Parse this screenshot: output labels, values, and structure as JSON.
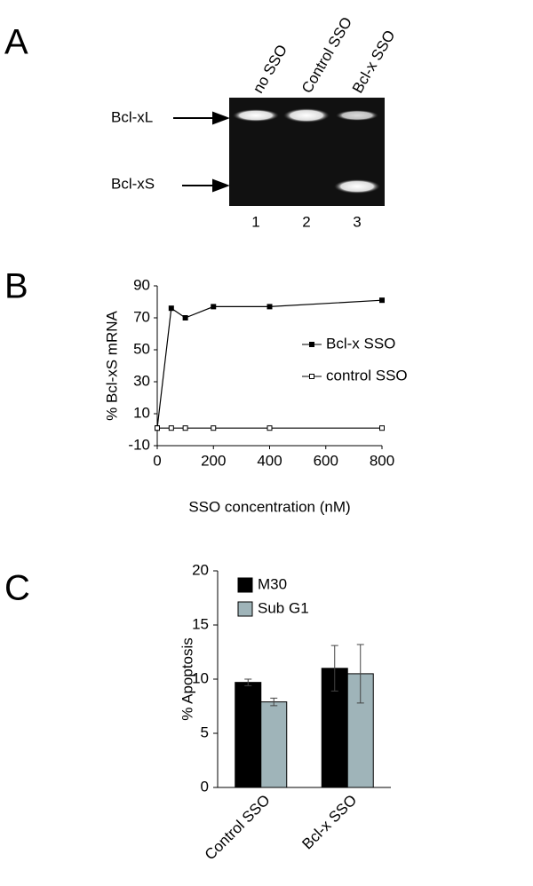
{
  "gel": {
    "panel_label": "A",
    "lanes": [
      "no SSO",
      "Control SSO",
      "Bcl-x SSO"
    ],
    "lane_numbers": [
      "1",
      "2",
      "3"
    ],
    "bands": [
      "Bcl-xL",
      "Bcl-xS"
    ]
  },
  "chart_data": [
    {
      "type": "line",
      "panel_label": "B",
      "xlabel": "SSO concentration (nM)",
      "ylabel": "% Bcl-xS mRNA",
      "xlim": [
        0,
        800
      ],
      "xticks": [
        0,
        200,
        400,
        600,
        800
      ],
      "ylim": [
        -10,
        90
      ],
      "yticks": [
        -10,
        10,
        30,
        50,
        70,
        90
      ],
      "series": [
        {
          "name": "Bcl-x SSO",
          "color": "#000000",
          "marker_fill": "#000000",
          "x": [
            0,
            50,
            100,
            200,
            400,
            800
          ],
          "values": [
            1,
            76,
            70,
            77,
            77,
            81
          ]
        },
        {
          "name": "control SSO",
          "color": "#000000",
          "marker_fill": "#ffffff",
          "x": [
            0,
            50,
            100,
            200,
            400,
            800
          ],
          "values": [
            1,
            1,
            1,
            1,
            1,
            1
          ]
        }
      ]
    },
    {
      "type": "bar",
      "panel_label": "C",
      "ylabel": "% Apoptosis",
      "categories": [
        "Control SSO",
        "Bcl-x SSO"
      ],
      "ylim": [
        0,
        20
      ],
      "yticks": [
        0,
        5,
        10,
        15,
        20
      ],
      "series": [
        {
          "name": "M30",
          "color": "#000000",
          "values": [
            9.7,
            11.0
          ],
          "errors": [
            0.3,
            2.1
          ]
        },
        {
          "name": "Sub G1",
          "color": "#9fb4b9",
          "values": [
            7.9,
            10.5
          ],
          "errors": [
            0.35,
            2.7
          ]
        }
      ]
    }
  ]
}
